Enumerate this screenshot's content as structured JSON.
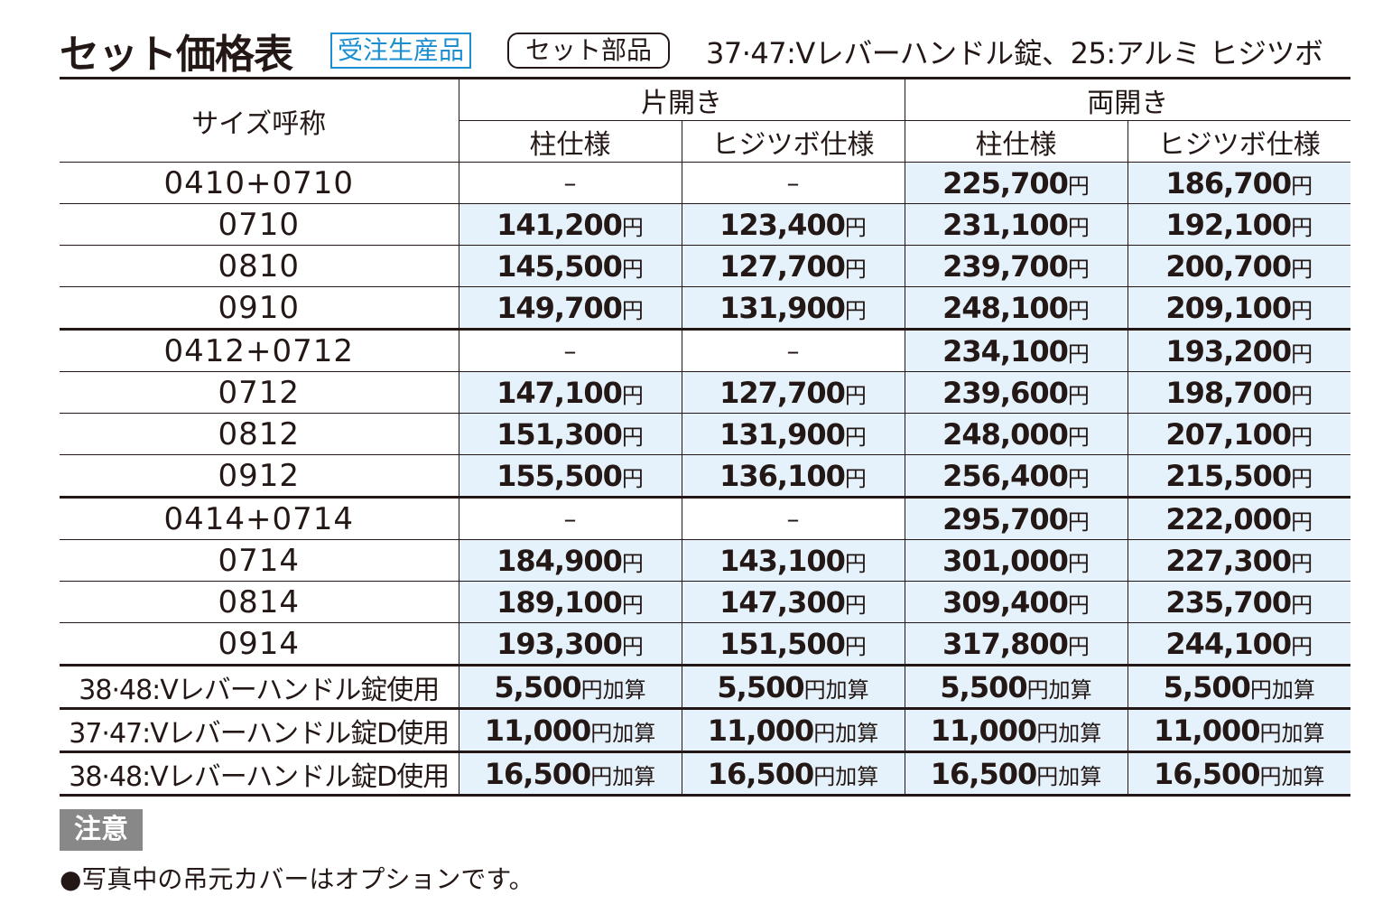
{
  "header": {
    "title": "セット価格表",
    "badge_order": "受注生産品",
    "badge_set": "セット部品",
    "note": "37·47:Vレバーハンドル錠、25:アルミ ヒジツボ"
  },
  "table": {
    "size_header": "サイズ呼称",
    "group_single": "片開き",
    "group_double": "両開き",
    "col_pillar": "柱仕様",
    "col_elbow": "ヒジツボ仕様",
    "yen": "円",
    "add_suffix": "円加算",
    "rows": [
      {
        "size": "0410+0710",
        "v": [
          "–",
          "–",
          "225,700",
          "186,700"
        ]
      },
      {
        "size": "0710",
        "v": [
          "141,200",
          "123,400",
          "231,100",
          "192,100"
        ]
      },
      {
        "size": "0810",
        "v": [
          "145,500",
          "127,700",
          "239,700",
          "200,700"
        ]
      },
      {
        "size": "0910",
        "v": [
          "149,700",
          "131,900",
          "248,100",
          "209,100"
        ]
      },
      {
        "size": "0412+0712",
        "v": [
          "–",
          "–",
          "234,100",
          "193,200"
        ]
      },
      {
        "size": "0712",
        "v": [
          "147,100",
          "127,700",
          "239,600",
          "198,700"
        ]
      },
      {
        "size": "0812",
        "v": [
          "151,300",
          "131,900",
          "248,000",
          "207,100"
        ]
      },
      {
        "size": "0912",
        "v": [
          "155,500",
          "136,100",
          "256,400",
          "215,500"
        ]
      },
      {
        "size": "0414+0714",
        "v": [
          "–",
          "–",
          "295,700",
          "222,000"
        ]
      },
      {
        "size": "0714",
        "v": [
          "184,900",
          "143,100",
          "301,000",
          "227,300"
        ]
      },
      {
        "size": "0814",
        "v": [
          "189,100",
          "147,300",
          "309,400",
          "235,700"
        ]
      },
      {
        "size": "0914",
        "v": [
          "193,300",
          "151,500",
          "317,800",
          "244,100"
        ]
      }
    ],
    "options": [
      {
        "label": "38·48:Vレバーハンドル錠使用",
        "v": [
          "5,500",
          "5,500",
          "5,500",
          "5,500"
        ]
      },
      {
        "label": "37·47:Vレバーハンドル錠D使用",
        "v": [
          "11,000",
          "11,000",
          "11,000",
          "11,000"
        ]
      },
      {
        "label": "38·48:Vレバーハンドル錠D使用",
        "v": [
          "16,500",
          "16,500",
          "16,500",
          "16,500"
        ]
      }
    ]
  },
  "notice": {
    "label": "注意",
    "text": "●写真中の吊元カバーはオプションです。"
  },
  "colors": {
    "highlight": "#e6f2fb",
    "badge_blue": "#1b8fd0",
    "notice_gray": "#888888"
  }
}
